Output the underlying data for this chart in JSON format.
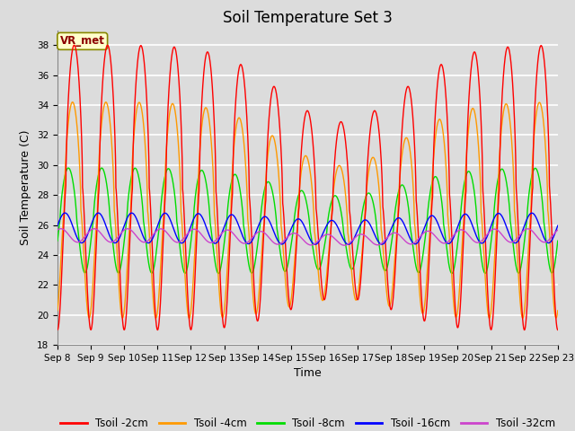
{
  "title": "Soil Temperature Set 3",
  "xlabel": "Time",
  "ylabel": "Soil Temperature (C)",
  "ylim": [
    18,
    39
  ],
  "yticks": [
    18,
    20,
    22,
    24,
    26,
    28,
    30,
    32,
    34,
    36,
    38
  ],
  "background_color": "#dcdcdc",
  "axes_facecolor": "#dcdcdc",
  "grid_color": "white",
  "series": {
    "Tsoil -2cm": {
      "color": "#ff0000",
      "lw": 1.0
    },
    "Tsoil -4cm": {
      "color": "#ff9900",
      "lw": 1.0
    },
    "Tsoil -8cm": {
      "color": "#00dd00",
      "lw": 1.0
    },
    "Tsoil -16cm": {
      "color": "#0000ff",
      "lw": 1.0
    },
    "Tsoil -32cm": {
      "color": "#cc44cc",
      "lw": 1.0
    }
  },
  "title_fontsize": 12,
  "label_fontsize": 9,
  "tick_fontsize": 7.5
}
